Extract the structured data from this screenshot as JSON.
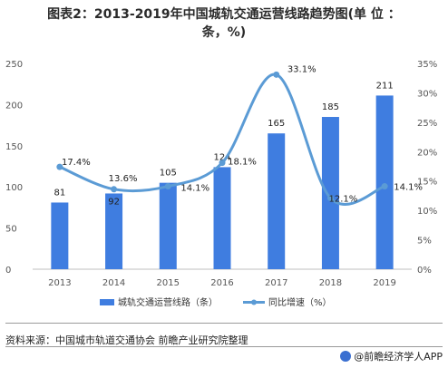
{
  "title": {
    "line1": "图表2：2013-2019年中国城轨交通运营线路趋势图(单 位 ：",
    "line2": "条，%)"
  },
  "chart_data": {
    "type": "bar",
    "categories": [
      "2013",
      "2014",
      "2015",
      "2016",
      "2017",
      "2018",
      "2019"
    ],
    "series": [
      {
        "name": "城轨交通运营线路（条）",
        "type": "bar",
        "axis": "left",
        "values": [
          81,
          92,
          105,
          124,
          165,
          185,
          211
        ],
        "color": "#3f7de0"
      },
      {
        "name": "同比增速（%）",
        "type": "line",
        "axis": "right",
        "values": [
          17.4,
          13.6,
          14.1,
          18.1,
          33.1,
          12.1,
          14.1
        ],
        "color": "#5b9bd5",
        "labels": [
          "17.4%",
          "13.6%",
          "14.1%",
          "18.1%",
          "33.1%",
          "12.1%",
          "14.1%"
        ]
      }
    ],
    "y_left": {
      "ylim": [
        0,
        250
      ],
      "ticks": [
        "0",
        "50",
        "100",
        "150",
        "200",
        "250"
      ]
    },
    "y_right": {
      "ylim": [
        0,
        35
      ],
      "ticks": [
        "0%",
        "5%",
        "10%",
        "15%",
        "20%",
        "25%",
        "30%",
        "35%"
      ]
    },
    "grid": false,
    "legend_position": "bottom"
  },
  "footer": {
    "source": "资料来源：中国城市轨道交通协会 前瞻产业研究院整理",
    "brand": "@前瞻经济学人APP"
  }
}
